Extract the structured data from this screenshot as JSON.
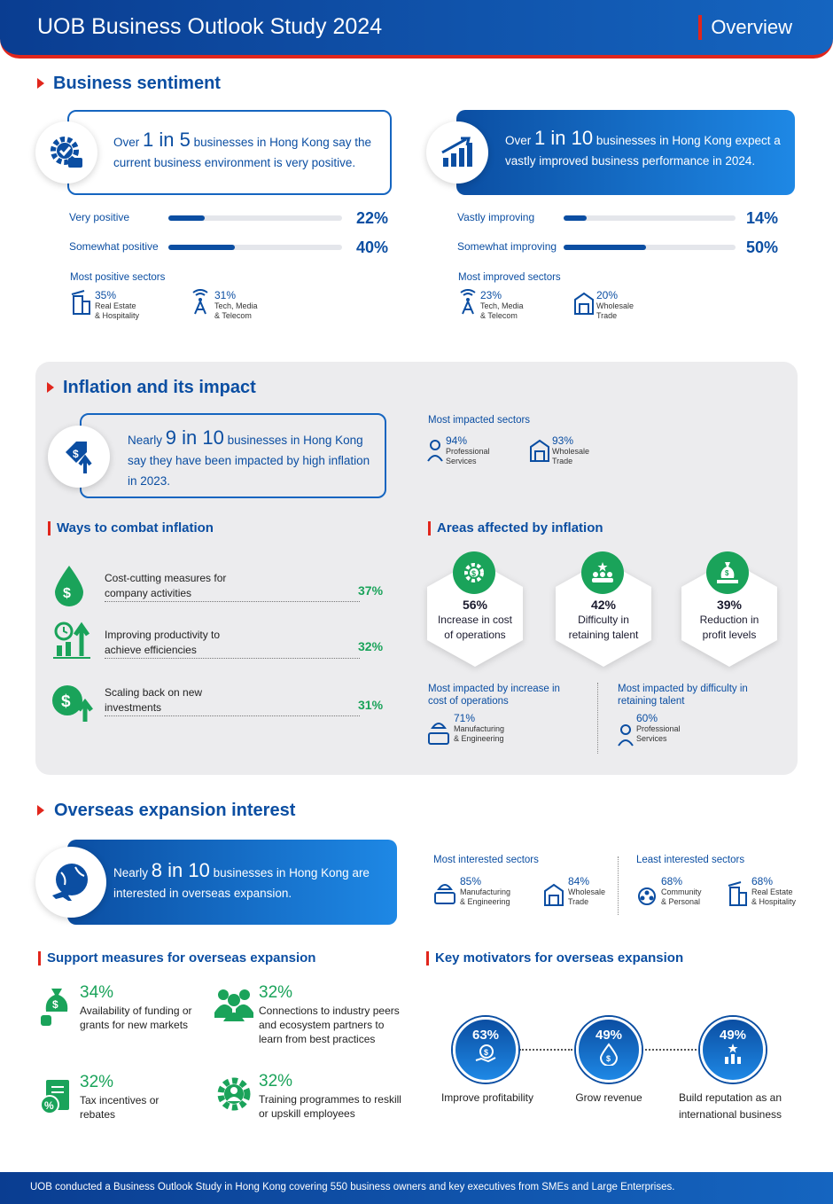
{
  "header": {
    "title": "UOB Business Outlook Study 2024",
    "tag": "Overview"
  },
  "sentiment": {
    "title": "Business sentiment",
    "left_callout": {
      "pre": "Over ",
      "big": "1 in 5",
      "post": " businesses in Hong Kong say the current business environment is very positive."
    },
    "right_callout": {
      "pre": "Over ",
      "big": "1 in 10",
      "post": " businesses in Hong Kong expect a vastly improved business performance in 2024."
    },
    "left_bars": [
      {
        "label": "Very positive",
        "value": 22,
        "pct": "22%"
      },
      {
        "label": "Somewhat positive",
        "value": 40,
        "pct": "40%"
      }
    ],
    "right_bars": [
      {
        "label": "Vastly improving",
        "value": 14,
        "pct": "14%"
      },
      {
        "label": "Somewhat improving",
        "value": 50,
        "pct": "50%"
      }
    ],
    "left_sectors_head": "Most positive sectors",
    "left_sectors": [
      {
        "pct": "35%",
        "name1": "Real Estate",
        "name2": "& Hospitality",
        "icon": "building-icon"
      },
      {
        "pct": "31%",
        "name1": "Tech, Media",
        "name2": "& Telecom",
        "icon": "antenna-icon"
      }
    ],
    "right_sectors_head": "Most improved sectors",
    "right_sectors": [
      {
        "pct": "23%",
        "name1": "Tech, Media",
        "name2": "& Telecom",
        "icon": "antenna-icon"
      },
      {
        "pct": "20%",
        "name1": "Wholesale",
        "name2": "Trade",
        "icon": "warehouse-icon"
      }
    ]
  },
  "inflation": {
    "title": "Inflation and its impact",
    "callout": {
      "pre": "Nearly ",
      "big": "9 in 10",
      "post": " businesses in Hong Kong say they have been impacted by high inflation in 2023."
    },
    "impacted_head": "Most impacted sectors",
    "impacted": [
      {
        "pct": "94%",
        "name1": "Professional",
        "name2": "Services"
      },
      {
        "pct": "93%",
        "name1": "Wholesale",
        "name2": "Trade"
      }
    ],
    "combat_title": "Ways to combat inflation",
    "combat": [
      {
        "line1": "Cost-cutting measures for",
        "line2": "company activities",
        "pct": "37%"
      },
      {
        "line1": "Improving productivity to",
        "line2": "achieve efficiencies",
        "pct": "32%"
      },
      {
        "line1": "Scaling back on new",
        "line2": "investments",
        "pct": "31%"
      }
    ],
    "areas_title": "Areas affected by inflation",
    "areas": [
      {
        "pct": "56%",
        "line1": "Increase in cost",
        "line2": "of operations"
      },
      {
        "pct": "42%",
        "line1": "Difficulty in",
        "line2": "retaining talent"
      },
      {
        "pct": "39%",
        "line1": "Reduction in",
        "line2": "profit levels"
      }
    ],
    "cost_head1": "Most impacted by increase in",
    "cost_head2": "cost of operations",
    "cost_sector": {
      "pct": "71%",
      "name1": "Manufacturing",
      "name2": "& Engineering"
    },
    "talent_head1": "Most impacted by difficulty in",
    "talent_head2": "retaining talent",
    "talent_sector": {
      "pct": "60%",
      "name1": "Professional",
      "name2": "Services"
    }
  },
  "overseas": {
    "title": "Overseas expansion interest",
    "callout": {
      "pre": "Nearly ",
      "big": "8 in 10",
      "post": " businesses in Hong Kong are interested in overseas expansion."
    },
    "most_head": "Most interested sectors",
    "most": [
      {
        "pct": "85%",
        "name1": "Manufacturing",
        "name2": "& Engineering"
      },
      {
        "pct": "84%",
        "name1": "Wholesale",
        "name2": "Trade"
      }
    ],
    "least_head": "Least interested sectors",
    "least": [
      {
        "pct": "68%",
        "name1": "Community",
        "name2": "& Personal"
      },
      {
        "pct": "68%",
        "name1": "Real Estate",
        "name2": "& Hospitality"
      }
    ],
    "support_title": "Support measures for overseas expansion",
    "support": [
      {
        "pct": "34%",
        "text": "Availability of funding or grants for new markets"
      },
      {
        "pct": "32%",
        "text": "Connections to industry peers and ecosystem partners to learn from best practices"
      },
      {
        "pct": "32%",
        "text": "Tax incentives or rebates"
      },
      {
        "pct": "32%",
        "text": "Training programmes to reskill or upskill employees"
      }
    ],
    "motiv_title": "Key motivators for overseas expansion",
    "motivators": [
      {
        "pct": "63%",
        "label1": "Improve profitability",
        "label2": ""
      },
      {
        "pct": "49%",
        "label1": "Grow revenue",
        "label2": ""
      },
      {
        "pct": "49%",
        "label1": "Build reputation as an",
        "label2": "international business"
      }
    ]
  },
  "footer": "UOB conducted a Business Outlook Study in Hong Kong covering 550 business owners and key executives from SMEs and Large Enterprises."
}
